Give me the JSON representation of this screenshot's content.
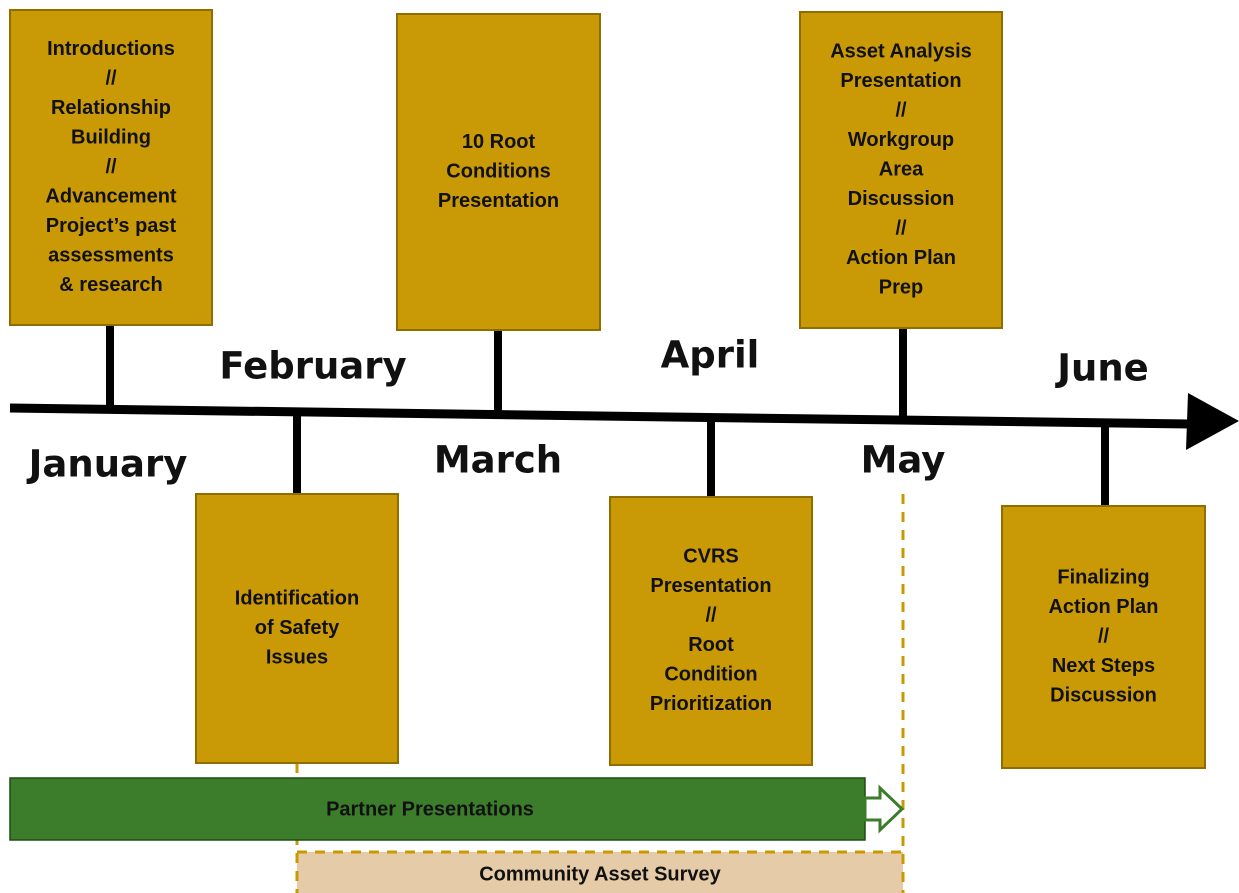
{
  "months": [
    "January",
    "February",
    "March",
    "April",
    "May",
    "June"
  ],
  "milestones": [
    {
      "lines": [
        "Introductions",
        "//",
        "Relationship",
        "Building",
        "//",
        "Advancement",
        "Project’s past",
        "assessments",
        "& research"
      ]
    },
    {
      "lines": [
        "10 Root",
        "Conditions",
        "Presentation"
      ]
    },
    {
      "lines": [
        "Asset Analysis",
        "Presentation",
        "//",
        "Workgroup",
        "Area",
        "Discussion",
        "//",
        "Action Plan",
        "Prep"
      ]
    },
    {
      "lines": [
        "Identification",
        "of Safety",
        "Issues"
      ]
    },
    {
      "lines": [
        "CVRS",
        "Presentation",
        "//",
        "Root",
        "Condition",
        "Prioritization"
      ]
    },
    {
      "lines": [
        "Finalizing",
        "Action Plan",
        "//",
        "Next Steps",
        "Discussion"
      ]
    }
  ],
  "bars": [
    "Partner Presentations",
    "Community Asset Survey"
  ]
}
